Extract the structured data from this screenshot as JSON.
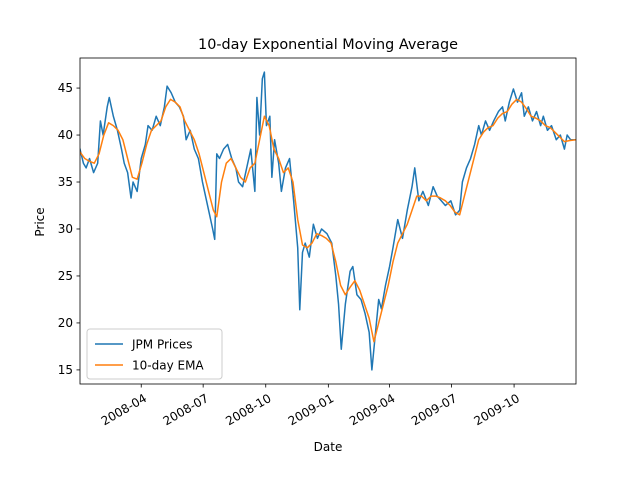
{
  "chart_data": {
    "type": "line",
    "title": "10-day Exponential Moving Average",
    "xlabel": "Date",
    "ylabel": "Price",
    "xlim": [
      "2008-01-02",
      "2009-12-31"
    ],
    "ylim": [
      13.5,
      48.2
    ],
    "x_ticks": [
      {
        "date": "2008-04-01",
        "label": "2008-04"
      },
      {
        "date": "2008-07-01",
        "label": "2008-07"
      },
      {
        "date": "2008-10-01",
        "label": "2008-10"
      },
      {
        "date": "2009-01-01",
        "label": "2009-01"
      },
      {
        "date": "2009-04-01",
        "label": "2009-04"
      },
      {
        "date": "2009-07-01",
        "label": "2009-07"
      },
      {
        "date": "2009-10-01",
        "label": "2009-10"
      }
    ],
    "y_ticks": [
      15,
      20,
      25,
      30,
      35,
      40,
      45
    ],
    "grid": false,
    "legend_position": "lower-left",
    "series": [
      {
        "name": "JPM Prices",
        "color": "#1f77b4",
        "points": [
          [
            "2008-01-02",
            38.5
          ],
          [
            "2008-01-07",
            37.0
          ],
          [
            "2008-01-11",
            36.5
          ],
          [
            "2008-01-16",
            37.5
          ],
          [
            "2008-01-22",
            36.0
          ],
          [
            "2008-01-28",
            37.0
          ],
          [
            "2008-02-01",
            41.5
          ],
          [
            "2008-02-05",
            40.0
          ],
          [
            "2008-02-11",
            43.0
          ],
          [
            "2008-02-14",
            44.0
          ],
          [
            "2008-02-20",
            42.0
          ],
          [
            "2008-02-26",
            40.5
          ],
          [
            "2008-03-03",
            38.5
          ],
          [
            "2008-03-07",
            37.0
          ],
          [
            "2008-03-12",
            36.0
          ],
          [
            "2008-03-17",
            33.3
          ],
          [
            "2008-03-20",
            35.0
          ],
          [
            "2008-03-26",
            34.0
          ],
          [
            "2008-04-01",
            37.5
          ],
          [
            "2008-04-07",
            39.0
          ],
          [
            "2008-04-11",
            41.0
          ],
          [
            "2008-04-17",
            40.5
          ],
          [
            "2008-04-23",
            42.0
          ],
          [
            "2008-04-29",
            41.0
          ],
          [
            "2008-05-05",
            43.0
          ],
          [
            "2008-05-09",
            45.2
          ],
          [
            "2008-05-15",
            44.5
          ],
          [
            "2008-05-21",
            43.5
          ],
          [
            "2008-05-27",
            43.0
          ],
          [
            "2008-06-02",
            42.0
          ],
          [
            "2008-06-06",
            39.5
          ],
          [
            "2008-06-12",
            40.5
          ],
          [
            "2008-06-18",
            38.5
          ],
          [
            "2008-06-24",
            37.5
          ],
          [
            "2008-06-30",
            35.0
          ],
          [
            "2008-07-03",
            34.0
          ],
          [
            "2008-07-09",
            32.0
          ],
          [
            "2008-07-15",
            30.0
          ],
          [
            "2008-07-18",
            28.9
          ],
          [
            "2008-07-21",
            38.0
          ],
          [
            "2008-07-25",
            37.5
          ],
          [
            "2008-07-31",
            38.5
          ],
          [
            "2008-08-06",
            39.0
          ],
          [
            "2008-08-12",
            37.5
          ],
          [
            "2008-08-18",
            36.5
          ],
          [
            "2008-08-22",
            35.0
          ],
          [
            "2008-08-28",
            34.5
          ],
          [
            "2008-09-03",
            36.5
          ],
          [
            "2008-09-09",
            38.5
          ],
          [
            "2008-09-15",
            34.0
          ],
          [
            "2008-09-18",
            44.0
          ],
          [
            "2008-09-22",
            40.0
          ],
          [
            "2008-09-26",
            46.0
          ],
          [
            "2008-09-29",
            46.7
          ],
          [
            "2008-10-02",
            41.0
          ],
          [
            "2008-10-07",
            42.0
          ],
          [
            "2008-10-10",
            35.5
          ],
          [
            "2008-10-14",
            39.5
          ],
          [
            "2008-10-20",
            37.0
          ],
          [
            "2008-10-24",
            34.0
          ],
          [
            "2008-10-30",
            36.5
          ],
          [
            "2008-11-05",
            37.5
          ],
          [
            "2008-11-11",
            33.0
          ],
          [
            "2008-11-17",
            28.0
          ],
          [
            "2008-11-20",
            21.4
          ],
          [
            "2008-11-24",
            27.5
          ],
          [
            "2008-11-28",
            28.5
          ],
          [
            "2008-12-04",
            27.0
          ],
          [
            "2008-12-10",
            30.5
          ],
          [
            "2008-12-16",
            29.0
          ],
          [
            "2008-12-22",
            30.0
          ],
          [
            "2008-12-30",
            29.5
          ],
          [
            "2009-01-06",
            28.5
          ],
          [
            "2009-01-12",
            25.0
          ],
          [
            "2009-01-16",
            22.0
          ],
          [
            "2009-01-20",
            17.2
          ],
          [
            "2009-01-26",
            22.0
          ],
          [
            "2009-02-02",
            25.5
          ],
          [
            "2009-02-06",
            26.0
          ],
          [
            "2009-02-12",
            23.0
          ],
          [
            "2009-02-18",
            22.5
          ],
          [
            "2009-02-24",
            21.0
          ],
          [
            "2009-03-02",
            19.0
          ],
          [
            "2009-03-06",
            15.0
          ],
          [
            "2009-03-10",
            18.0
          ],
          [
            "2009-03-16",
            22.5
          ],
          [
            "2009-03-20",
            21.5
          ],
          [
            "2009-03-26",
            24.0
          ],
          [
            "2009-04-01",
            26.0
          ],
          [
            "2009-04-06",
            28.0
          ],
          [
            "2009-04-13",
            31.0
          ],
          [
            "2009-04-20",
            29.0
          ],
          [
            "2009-04-27",
            32.0
          ],
          [
            "2009-05-04",
            34.5
          ],
          [
            "2009-05-08",
            36.5
          ],
          [
            "2009-05-14",
            33.0
          ],
          [
            "2009-05-20",
            34.0
          ],
          [
            "2009-05-28",
            32.5
          ],
          [
            "2009-06-04",
            34.5
          ],
          [
            "2009-06-10",
            33.5
          ],
          [
            "2009-06-16",
            33.0
          ],
          [
            "2009-06-22",
            32.5
          ],
          [
            "2009-06-30",
            33.0
          ],
          [
            "2009-07-07",
            31.5
          ],
          [
            "2009-07-13",
            32.0
          ],
          [
            "2009-07-17",
            35.0
          ],
          [
            "2009-07-23",
            36.5
          ],
          [
            "2009-07-29",
            37.5
          ],
          [
            "2009-08-04",
            39.0
          ],
          [
            "2009-08-10",
            41.0
          ],
          [
            "2009-08-14",
            40.0
          ],
          [
            "2009-08-20",
            41.5
          ],
          [
            "2009-08-26",
            40.5
          ],
          [
            "2009-09-01",
            41.5
          ],
          [
            "2009-09-08",
            42.5
          ],
          [
            "2009-09-14",
            43.0
          ],
          [
            "2009-09-18",
            41.5
          ],
          [
            "2009-09-24",
            43.5
          ],
          [
            "2009-09-30",
            44.9
          ],
          [
            "2009-10-06",
            43.5
          ],
          [
            "2009-10-12",
            44.5
          ],
          [
            "2009-10-16",
            42.0
          ],
          [
            "2009-10-22",
            43.0
          ],
          [
            "2009-10-28",
            41.5
          ],
          [
            "2009-11-03",
            42.5
          ],
          [
            "2009-11-09",
            41.0
          ],
          [
            "2009-11-13",
            42.0
          ],
          [
            "2009-11-19",
            40.5
          ],
          [
            "2009-11-25",
            41.0
          ],
          [
            "2009-12-02",
            39.5
          ],
          [
            "2009-12-08",
            40.0
          ],
          [
            "2009-12-14",
            38.5
          ],
          [
            "2009-12-18",
            40.0
          ],
          [
            "2009-12-23",
            39.5
          ],
          [
            "2009-12-31",
            39.5
          ]
        ]
      },
      {
        "name": "10-day EMA",
        "color": "#ff7f0e",
        "points": [
          [
            "2008-01-02",
            38.2
          ],
          [
            "2008-01-09",
            37.5
          ],
          [
            "2008-01-16",
            37.2
          ],
          [
            "2008-01-23",
            37.0
          ],
          [
            "2008-01-30",
            38.0
          ],
          [
            "2008-02-06",
            40.0
          ],
          [
            "2008-02-13",
            41.3
          ],
          [
            "2008-02-20",
            41.0
          ],
          [
            "2008-02-27",
            40.5
          ],
          [
            "2008-03-05",
            39.5
          ],
          [
            "2008-03-12",
            37.5
          ],
          [
            "2008-03-19",
            35.5
          ],
          [
            "2008-03-26",
            35.3
          ],
          [
            "2008-04-02",
            37.0
          ],
          [
            "2008-04-09",
            39.0
          ],
          [
            "2008-04-16",
            40.5
          ],
          [
            "2008-04-23",
            41.0
          ],
          [
            "2008-04-30",
            41.5
          ],
          [
            "2008-05-07",
            43.0
          ],
          [
            "2008-05-14",
            43.8
          ],
          [
            "2008-05-21",
            43.5
          ],
          [
            "2008-05-28",
            43.0
          ],
          [
            "2008-06-04",
            41.5
          ],
          [
            "2008-06-11",
            40.5
          ],
          [
            "2008-06-18",
            39.5
          ],
          [
            "2008-06-25",
            38.0
          ],
          [
            "2008-07-02",
            36.0
          ],
          [
            "2008-07-09",
            34.0
          ],
          [
            "2008-07-16",
            32.0
          ],
          [
            "2008-07-21",
            31.3
          ],
          [
            "2008-07-28",
            35.0
          ],
          [
            "2008-08-04",
            37.0
          ],
          [
            "2008-08-11",
            37.5
          ],
          [
            "2008-08-18",
            36.5
          ],
          [
            "2008-08-25",
            35.5
          ],
          [
            "2008-09-01",
            35.0
          ],
          [
            "2008-09-08",
            36.5
          ],
          [
            "2008-09-15",
            37.0
          ],
          [
            "2008-09-22",
            39.5
          ],
          [
            "2008-09-29",
            42.0
          ],
          [
            "2008-10-06",
            41.0
          ],
          [
            "2008-10-13",
            38.5
          ],
          [
            "2008-10-20",
            37.5
          ],
          [
            "2008-10-27",
            36.0
          ],
          [
            "2008-11-03",
            36.5
          ],
          [
            "2008-11-10",
            35.0
          ],
          [
            "2008-11-17",
            31.0
          ],
          [
            "2008-11-24",
            28.3
          ],
          [
            "2008-12-01",
            28.0
          ],
          [
            "2008-12-08",
            28.5
          ],
          [
            "2008-12-15",
            29.5
          ],
          [
            "2008-12-22",
            29.3
          ],
          [
            "2008-12-29",
            29.0
          ],
          [
            "2009-01-05",
            28.5
          ],
          [
            "2009-01-12",
            26.5
          ],
          [
            "2009-01-19",
            24.0
          ],
          [
            "2009-01-26",
            23.0
          ],
          [
            "2009-02-02",
            23.8
          ],
          [
            "2009-02-09",
            24.5
          ],
          [
            "2009-02-16",
            23.5
          ],
          [
            "2009-02-23",
            22.0
          ],
          [
            "2009-03-02",
            20.5
          ],
          [
            "2009-03-09",
            18.0
          ],
          [
            "2009-03-16",
            20.0
          ],
          [
            "2009-03-23",
            22.0
          ],
          [
            "2009-03-30",
            24.0
          ],
          [
            "2009-04-06",
            26.5
          ],
          [
            "2009-04-13",
            28.5
          ],
          [
            "2009-04-20",
            29.5
          ],
          [
            "2009-04-27",
            30.5
          ],
          [
            "2009-05-04",
            32.0
          ],
          [
            "2009-05-11",
            33.5
          ],
          [
            "2009-05-18",
            33.5
          ],
          [
            "2009-05-25",
            33.0
          ],
          [
            "2009-06-01",
            33.5
          ],
          [
            "2009-06-08",
            33.5
          ],
          [
            "2009-06-15",
            33.3
          ],
          [
            "2009-06-22",
            33.0
          ],
          [
            "2009-06-29",
            32.5
          ],
          [
            "2009-07-06",
            31.8
          ],
          [
            "2009-07-13",
            31.5
          ],
          [
            "2009-07-20",
            33.5
          ],
          [
            "2009-07-27",
            35.5
          ],
          [
            "2009-08-03",
            37.5
          ],
          [
            "2009-08-10",
            39.5
          ],
          [
            "2009-08-17",
            40.3
          ],
          [
            "2009-08-24",
            40.8
          ],
          [
            "2009-08-31",
            41.0
          ],
          [
            "2009-09-07",
            41.8
          ],
          [
            "2009-09-14",
            42.3
          ],
          [
            "2009-09-21",
            42.5
          ],
          [
            "2009-09-28",
            43.3
          ],
          [
            "2009-10-05",
            43.8
          ],
          [
            "2009-10-12",
            43.5
          ],
          [
            "2009-10-19",
            42.8
          ],
          [
            "2009-10-26",
            42.0
          ],
          [
            "2009-11-02",
            41.8
          ],
          [
            "2009-11-09",
            41.5
          ],
          [
            "2009-11-16",
            41.0
          ],
          [
            "2009-11-23",
            40.8
          ],
          [
            "2009-11-30",
            40.3
          ],
          [
            "2009-12-07",
            39.8
          ],
          [
            "2009-12-14",
            39.3
          ],
          [
            "2009-12-21",
            39.4
          ],
          [
            "2009-12-31",
            39.5
          ]
        ]
      }
    ]
  }
}
